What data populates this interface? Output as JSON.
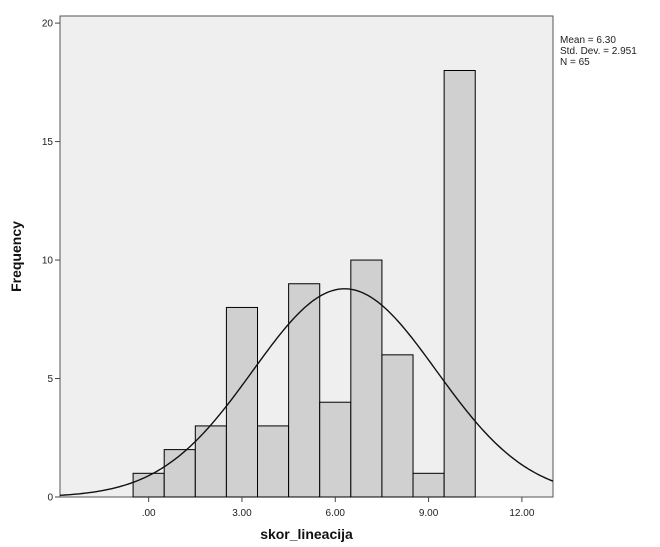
{
  "chart_data": {
    "type": "bar",
    "subtype": "histogram",
    "xlabel": "skor_lineacija",
    "ylabel": "Frequency",
    "x_ticks": [
      {
        "value": 3,
        "label": ".00"
      },
      {
        "value": 6,
        "label": "3.00"
      },
      {
        "value": 9,
        "label": "6.00"
      },
      {
        "value": 12,
        "label": "9.00"
      },
      {
        "value": 15,
        "label": "12.00"
      }
    ],
    "y_ticks": [
      {
        "value": 0,
        "label": "0"
      },
      {
        "value": 5,
        "label": "5"
      },
      {
        "value": 10,
        "label": "10"
      },
      {
        "value": 15,
        "label": "15"
      },
      {
        "value": 20,
        "label": "20"
      }
    ],
    "xlim": [
      0.15,
      16.0
    ],
    "ylim": [
      0,
      20.3
    ],
    "bin_edges": [
      2.5,
      3.5,
      4.5,
      5.5,
      6.5,
      7.5,
      8.5,
      9.5,
      10.5,
      11.5,
      12.5,
      13.5
    ],
    "values": [
      1,
      2,
      3,
      8,
      3,
      9,
      4,
      10,
      6,
      1,
      18
    ],
    "normal_curve": {
      "mean": 9.3,
      "sd": 2.951,
      "n": 65,
      "bin_width": 1.0
    },
    "stats_text": [
      "Mean = 6.30",
      "Std. Dev. = 2.951",
      "N = 65"
    ],
    "grid": false,
    "colors": {
      "plot_bg": "#efefef",
      "bar_fill": "#d0d0d0",
      "bar_stroke": "#000000",
      "curve": "#111111",
      "frame": "#555555"
    }
  }
}
